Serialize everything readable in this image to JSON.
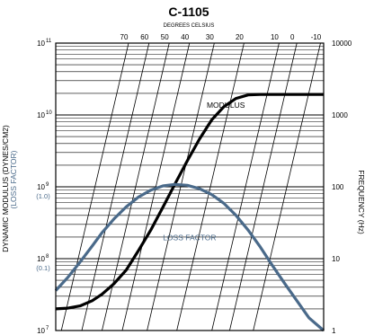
{
  "chart_data": {
    "type": "line",
    "title": "C-1105",
    "subtitle": "DEGREES CELSIUS",
    "ylabel_left": "DYNAMIC MODULUS (DYNES/CM2)",
    "ylabel_left_secondary": "(LOSS FACTOR)",
    "ylabel_right": "FREQUENCY (Hz)",
    "y_scale": "log",
    "ylim": [
      10000000,
      100000000000
    ],
    "xlim": [
      -0.19,
      0.91
    ],
    "y_ticks": [
      {
        "value": 10000000,
        "label": "10",
        "exp": "7",
        "secondary": ""
      },
      {
        "value": 100000000,
        "label": "10",
        "exp": "8",
        "secondary": "(0.1)"
      },
      {
        "value": 1000000000,
        "label": "10",
        "exp": "9",
        "secondary": "(1.0)"
      },
      {
        "value": 10000000000,
        "label": "10",
        "exp": "10",
        "secondary": ""
      },
      {
        "value": 100000000000,
        "label": "10",
        "exp": "11",
        "secondary": ""
      }
    ],
    "freq_ticks": [
      {
        "value": 10000,
        "label": "10000"
      },
      {
        "value": 1000,
        "label": "1000"
      },
      {
        "value": 100,
        "label": "100"
      },
      {
        "value": 10,
        "label": "10"
      },
      {
        "value": 1,
        "label": "1"
      }
    ],
    "temperature_ticks": [
      {
        "value": 70,
        "label": "70"
      },
      {
        "value": 60,
        "label": "60"
      },
      {
        "value": 50,
        "label": "50"
      },
      {
        "value": 40,
        "label": "40"
      },
      {
        "value": 30,
        "label": "30"
      },
      {
        "value": 20,
        "label": "20"
      },
      {
        "value": 10,
        "label": "10"
      },
      {
        "value": 0,
        "label": "0"
      },
      {
        "value": -10,
        "label": "-10"
      }
    ],
    "isotherm_lines": [
      {
        "temp": 70,
        "x_bottom": -0.167,
        "x_top": 0.109
      },
      {
        "temp": 60,
        "x_bottom": -0.083,
        "x_top": 0.193
      },
      {
        "temp": 50,
        "x_bottom": 0.0,
        "x_top": 0.276
      },
      {
        "temp": 40,
        "x_bottom": 0.083,
        "x_top": 0.359
      },
      {
        "temp": 30,
        "x_bottom": 0.185,
        "x_top": 0.461
      },
      {
        "temp": 20,
        "x_bottom": 0.307,
        "x_top": 0.583
      },
      {
        "temp": 10,
        "x_bottom": 0.451,
        "x_top": 0.727
      },
      {
        "temp": 0,
        "x_bottom": 0.524,
        "x_top": 0.8
      },
      {
        "temp": -10,
        "x_bottom": 0.621,
        "x_top": 0.897
      }
    ],
    "series": [
      {
        "name": "MODULUS",
        "color": "#000000",
        "points": [
          [
            -0.19,
            20000000
          ],
          [
            -0.14,
            20500000
          ],
          [
            -0.09,
            22000000
          ],
          [
            -0.04,
            26000000
          ],
          [
            0.0,
            32000000
          ],
          [
            0.05,
            45000000
          ],
          [
            0.1,
            70000000
          ],
          [
            0.15,
            130000000
          ],
          [
            0.2,
            250000000
          ],
          [
            0.25,
            520000000
          ],
          [
            0.3,
            1100000000
          ],
          [
            0.35,
            2300000000
          ],
          [
            0.4,
            4600000000
          ],
          [
            0.45,
            8500000000
          ],
          [
            0.5,
            13000000000
          ],
          [
            0.55,
            17000000000
          ],
          [
            0.6,
            19000000000
          ],
          [
            0.65,
            19300000000
          ],
          [
            0.91,
            19300000000
          ]
        ]
      },
      {
        "name": "LOSS FACTOR",
        "color": "#4a6a8a",
        "points": [
          [
            -0.19,
            36000000
          ],
          [
            -0.14,
            55000000
          ],
          [
            -0.09,
            90000000
          ],
          [
            -0.04,
            150000000
          ],
          [
            0.0,
            230000000
          ],
          [
            0.05,
            360000000
          ],
          [
            0.1,
            530000000
          ],
          [
            0.15,
            720000000
          ],
          [
            0.2,
            900000000
          ],
          [
            0.25,
            1030000000
          ],
          [
            0.3,
            1080000000
          ],
          [
            0.35,
            1050000000
          ],
          [
            0.4,
            940000000
          ],
          [
            0.45,
            780000000
          ],
          [
            0.5,
            590000000
          ],
          [
            0.55,
            400000000
          ],
          [
            0.6,
            250000000
          ],
          [
            0.65,
            145000000
          ],
          [
            0.7,
            80000000
          ],
          [
            0.75,
            45000000
          ],
          [
            0.8,
            26000000
          ],
          [
            0.85,
            15000000
          ],
          [
            0.91,
            10000000
          ]
        ]
      }
    ],
    "annotations": [
      {
        "text": "MODULUS",
        "series": "MODULUS",
        "x": 0.43,
        "y": 12500000000
      },
      {
        "text": "LOSS FACTOR",
        "series": "LOSS FACTOR",
        "x": 0.25,
        "y": 180000000
      }
    ]
  }
}
